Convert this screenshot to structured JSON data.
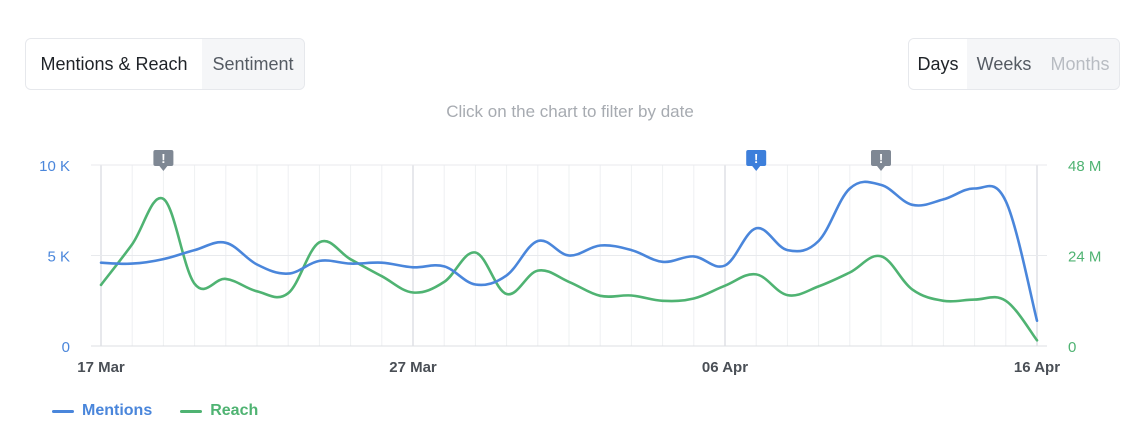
{
  "tabs": {
    "mentions_reach": "Mentions & Reach",
    "sentiment": "Sentiment"
  },
  "period": {
    "days": "Days",
    "weeks": "Weeks",
    "months": "Months"
  },
  "hint": "Click on the chart to filter by date",
  "colors": {
    "mentions": "#4a86db",
    "reach": "#4fb372",
    "left_axis": "#4a86db",
    "right_axis": "#4fb372",
    "alert_gray": "#7f8894",
    "alert_blue": "#3d7fdb"
  },
  "chart_data": {
    "type": "line",
    "x_start": "17 Mar",
    "x_ticks": [
      "17 Mar",
      "27 Mar",
      "06 Apr",
      "16 Apr"
    ],
    "x_tick_index": [
      0,
      10,
      20,
      30
    ],
    "y_left": {
      "ticks": [
        "0",
        "5 K",
        "10 K"
      ],
      "values": [
        0,
        5000,
        10000
      ],
      "lim": [
        0,
        10000
      ]
    },
    "y_right": {
      "ticks": [
        "0",
        "24 M",
        "48 M"
      ],
      "values": [
        0,
        24000000,
        48000000
      ],
      "lim": [
        0,
        48000000
      ]
    },
    "series": [
      {
        "name": "Mentions",
        "axis": "left",
        "values": [
          4600,
          4550,
          4800,
          5300,
          5700,
          4500,
          4000,
          4700,
          4550,
          4600,
          4350,
          4400,
          3400,
          3900,
          5800,
          5000,
          5550,
          5300,
          4650,
          4950,
          4450,
          6500,
          5300,
          5800,
          8700,
          8900,
          7800,
          8100,
          8700,
          8000,
          1400
        ]
      },
      {
        "name": "Reach",
        "axis": "right",
        "values": [
          16200,
          27000,
          39000,
          16500,
          17800,
          14500,
          14000,
          27500,
          23000,
          18500,
          14200,
          17000,
          24800,
          13800,
          20000,
          17000,
          13300,
          13400,
          12000,
          12600,
          16000,
          19000,
          13500,
          15800,
          19500,
          23800,
          15000,
          12000,
          12300,
          12000,
          1500
        ],
        "unit_note": ""
      }
    ],
    "alerts": [
      {
        "index": 2,
        "style": "gray",
        "label": "!"
      },
      {
        "index": 21,
        "style": "blue",
        "label": "!"
      },
      {
        "index": 25,
        "style": "gray",
        "label": "!"
      }
    ],
    "grid": true,
    "legend": "bottom-left"
  },
  "legend": {
    "mentions": "Mentions",
    "reach": "Reach"
  }
}
